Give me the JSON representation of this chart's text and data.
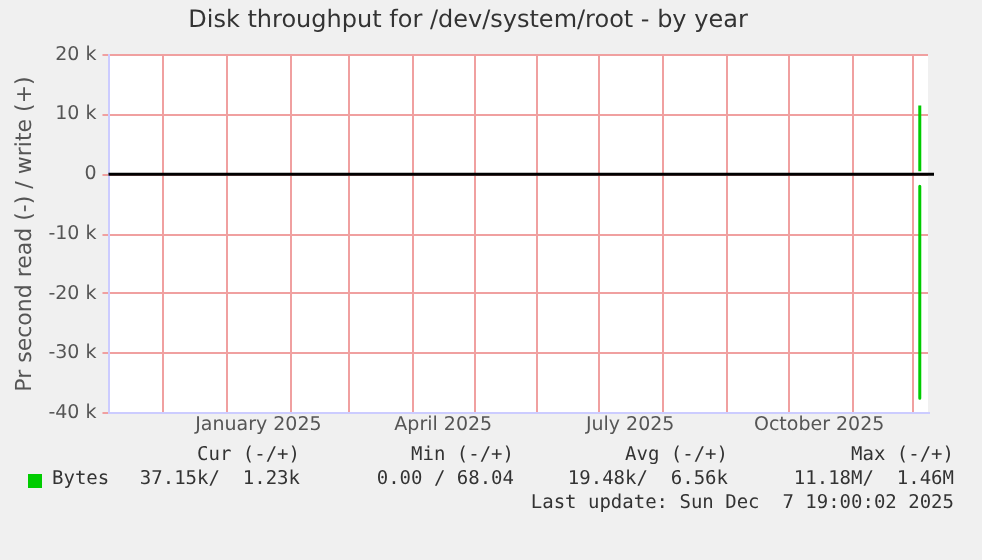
{
  "chart_data": {
    "type": "line",
    "title": "Disk throughput for /dev/system/root - by year",
    "ylabel": "Pr second read (-) / write (+)",
    "xlim": [
      "2024-11-04",
      "2025-12-08"
    ],
    "xticks": [
      {
        "value": "2024-12-01",
        "label": null
      },
      {
        "value": "2025-01-01",
        "label": null
      },
      {
        "value": "2025-01-16",
        "label": "January 2025"
      },
      {
        "value": "2025-02-01",
        "label": null
      },
      {
        "value": "2025-03-01",
        "label": null
      },
      {
        "value": "2025-04-01",
        "label": null
      },
      {
        "value": "2025-04-16",
        "label": "April 2025"
      },
      {
        "value": "2025-05-01",
        "label": null
      },
      {
        "value": "2025-06-01",
        "label": null
      },
      {
        "value": "2025-07-01",
        "label": null
      },
      {
        "value": "2025-07-16",
        "label": "July 2025"
      },
      {
        "value": "2025-08-01",
        "label": null
      },
      {
        "value": "2025-09-01",
        "label": null
      },
      {
        "value": "2025-10-01",
        "label": null
      },
      {
        "value": "2025-10-16",
        "label": "October 2025"
      },
      {
        "value": "2025-11-01",
        "label": null
      },
      {
        "value": "2025-12-01",
        "label": null
      }
    ],
    "ylim": [
      -40000,
      20000
    ],
    "yticks": [
      {
        "value": -40000,
        "label": "-40 k"
      },
      {
        "value": -30000,
        "label": "-30 k"
      },
      {
        "value": -20000,
        "label": "-20 k"
      },
      {
        "value": -10000,
        "label": "-10 k"
      },
      {
        "value": 0,
        "label": "0"
      },
      {
        "value": 10000,
        "label": "10 k"
      },
      {
        "value": 20000,
        "label": "20 k"
      }
    ],
    "grid": true,
    "legend": "bottom left",
    "marker": "none",
    "line_style": "solid",
    "ref_lines": [
      {
        "axis": "y",
        "value": 0,
        "color": "#000000"
      }
    ],
    "series": [
      {
        "color": "#00cc00",
        "x": [
          "2025-12-04",
          "2025-12-04"
        ],
        "values": [
          -2000,
          -37500
        ]
      },
      {
        "name": "Bytes",
        "color": "#00cc00",
        "x": [
          "2025-12-04",
          "2025-12-04"
        ],
        "values": [
          500,
          11500
        ]
      }
    ],
    "annotations": [
      "Cur (-/+)",
      "Min (-/+)",
      "Avg (-/+)",
      "Max (-/+)",
      "37.15k/  1.23k",
      "0.00 / 68.04",
      "19.48k/  6.56k",
      "11.18M/  1.46M",
      "Last update: Sun Dec  7 19:00:02 2025"
    ]
  }
}
